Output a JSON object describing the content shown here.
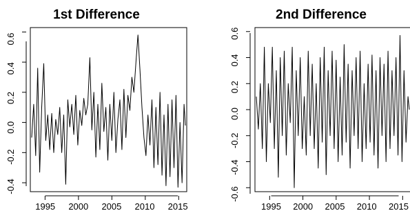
{
  "chart_data": [
    {
      "type": "line",
      "title": "1st Difference",
      "xlabel": "",
      "ylabel": "",
      "xlim": [
        1993,
        2016
      ],
      "ylim": [
        -0.45,
        0.62
      ],
      "x_ticks": [
        1995,
        2000,
        2005,
        2010,
        2015
      ],
      "y_ticks": [
        -0.4,
        -0.2,
        0.0,
        0.2,
        0.4,
        0.6
      ],
      "x_tick_labels": [
        "1995",
        "2000",
        "2005",
        "2010",
        "2015"
      ],
      "y_tick_labels": [
        "-0.4",
        "-0.2",
        "0.0",
        "0.2",
        "0.4",
        "0.6"
      ],
      "grid": false,
      "color": "#000000",
      "series": [
        {
          "x": [
            1993.0,
            1993.3,
            1993.6,
            1993.9,
            1994.2,
            1994.5,
            1994.8,
            1995.1,
            1995.4,
            1995.7,
            1996.0,
            1996.3,
            1996.6,
            1996.9,
            1997.2,
            1997.5,
            1997.8,
            1998.1,
            1998.4,
            1998.7,
            1999.0,
            1999.3,
            1999.6,
            1999.9,
            2000.2,
            2000.5,
            2000.8,
            2001.1,
            2001.4,
            2001.7,
            2002.0,
            2002.3,
            2002.6,
            2002.9,
            2003.2,
            2003.5,
            2003.8,
            2004.1,
            2004.4,
            2004.7,
            2005.0,
            2005.3,
            2005.6,
            2005.9,
            2006.2,
            2006.5,
            2006.8,
            2007.1,
            2007.4,
            2007.7,
            2008.0,
            2008.3,
            2008.6,
            2008.9,
            2009.2,
            2009.5,
            2009.8,
            2010.1,
            2010.4,
            2010.7,
            2011.0,
            2011.3,
            2011.6,
            2011.9,
            2012.2,
            2012.5,
            2012.8,
            2013.1,
            2013.4,
            2013.7,
            2014.0,
            2014.3,
            2014.6,
            2014.9,
            2015.2,
            2015.5,
            2015.8,
            2016.0
          ],
          "values": [
            -0.1,
            0.12,
            -0.22,
            0.36,
            -0.33,
            0.1,
            0.39,
            -0.12,
            0.05,
            -0.18,
            0.06,
            -0.2,
            0.02,
            -0.08,
            0.1,
            -0.2,
            0.05,
            -0.41,
            0.15,
            -0.03,
            0.12,
            -0.08,
            0.18,
            -0.15,
            0.08,
            -0.02,
            0.16,
            0.05,
            0.12,
            0.43,
            -0.05,
            0.2,
            -0.23,
            0.12,
            -0.18,
            0.26,
            -0.06,
            0.1,
            -0.25,
            0.12,
            -0.12,
            0.2,
            -0.2,
            0.02,
            0.15,
            -0.18,
            0.22,
            -0.1,
            0.18,
            0.08,
            0.3,
            0.2,
            0.4,
            0.58,
            0.35,
            0.1,
            -0.1,
            -0.22,
            0.05,
            -0.15,
            0.15,
            -0.3,
            0.1,
            -0.28,
            0.2,
            -0.35,
            0.05,
            -0.42,
            0.12,
            -0.36,
            0.15,
            -0.3,
            0.18,
            -0.43,
            0.0,
            -0.4,
            0.12,
            -0.02
          ]
        }
      ]
    },
    {
      "type": "line",
      "title": "2nd Difference",
      "xlabel": "",
      "ylabel": "",
      "xlim": [
        1993,
        2016
      ],
      "ylim": [
        -0.62,
        0.62
      ],
      "x_ticks": [
        1995,
        2000,
        2005,
        2010,
        2015
      ],
      "y_ticks": [
        -0.6,
        -0.4,
        -0.2,
        0.0,
        0.2,
        0.4,
        0.6
      ],
      "x_tick_labels": [
        "1995",
        "2000",
        "2005",
        "2010",
        "2015"
      ],
      "y_tick_labels": [
        "-0.6",
        "-0.4",
        "-0.2",
        "0.0",
        "0.2",
        "0.4",
        "0.6"
      ],
      "grid": false,
      "color": "#000000",
      "series": [
        {
          "x": [
            1993.0,
            1993.3,
            1993.6,
            1993.9,
            1994.2,
            1994.5,
            1994.8,
            1995.1,
            1995.4,
            1995.7,
            1996.0,
            1996.3,
            1996.6,
            1996.9,
            1997.2,
            1997.5,
            1997.8,
            1998.1,
            1998.4,
            1998.7,
            1999.0,
            1999.3,
            1999.6,
            1999.9,
            2000.2,
            2000.5,
            2000.8,
            2001.1,
            2001.4,
            2001.7,
            2002.0,
            2002.3,
            2002.6,
            2002.9,
            2003.2,
            2003.5,
            2003.8,
            2004.1,
            2004.4,
            2004.7,
            2005.0,
            2005.3,
            2005.6,
            2005.9,
            2006.2,
            2006.5,
            2006.8,
            2007.1,
            2007.4,
            2007.7,
            2008.0,
            2008.3,
            2008.6,
            2008.9,
            2009.2,
            2009.5,
            2009.8,
            2010.1,
            2010.4,
            2010.7,
            2011.0,
            2011.3,
            2011.6,
            2011.9,
            2012.2,
            2012.5,
            2012.8,
            2013.1,
            2013.4,
            2013.7,
            2014.0,
            2014.3,
            2014.6,
            2014.9,
            2015.2,
            2015.5,
            2015.8,
            2016.0
          ],
          "values": [
            0.1,
            -0.15,
            0.2,
            -0.3,
            0.48,
            -0.4,
            0.2,
            -0.1,
            0.48,
            -0.3,
            0.3,
            -0.52,
            0.4,
            -0.2,
            0.45,
            -0.35,
            0.2,
            -0.1,
            0.48,
            -0.6,
            0.3,
            -0.2,
            0.4,
            -0.3,
            0.1,
            -0.35,
            0.45,
            -0.2,
            0.35,
            -0.3,
            0.2,
            -0.45,
            0.4,
            -0.25,
            0.48,
            -0.5,
            0.3,
            -0.2,
            0.45,
            -0.3,
            0.38,
            -0.4,
            0.25,
            -0.35,
            0.5,
            -0.25,
            0.35,
            -0.45,
            0.3,
            -0.2,
            0.4,
            -0.3,
            0.45,
            -0.4,
            0.2,
            -0.3,
            0.35,
            -0.25,
            0.42,
            -0.35,
            0.3,
            -0.45,
            0.4,
            -0.2,
            0.35,
            -0.4,
            0.45,
            -0.3,
            0.3,
            -0.2,
            0.4,
            -0.35,
            0.57,
            -0.4,
            0.3,
            -0.25,
            0.1,
            0.0
          ]
        }
      ]
    }
  ]
}
